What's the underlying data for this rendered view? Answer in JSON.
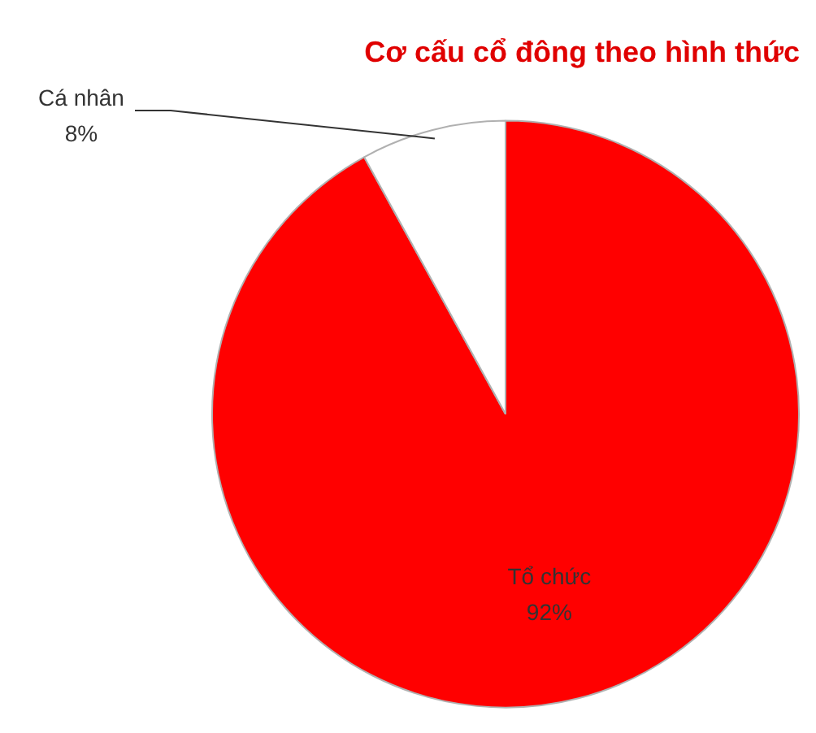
{
  "chart_data": {
    "type": "pie",
    "title": "Cơ cấu cổ đông theo hình thức",
    "categories": [
      "Tổ chức",
      "Cá nhân"
    ],
    "values": [
      92,
      8
    ],
    "colors": [
      "#ff0000",
      "#ffffff"
    ],
    "value_labels": [
      "92%",
      "8%"
    ],
    "legend": false
  }
}
